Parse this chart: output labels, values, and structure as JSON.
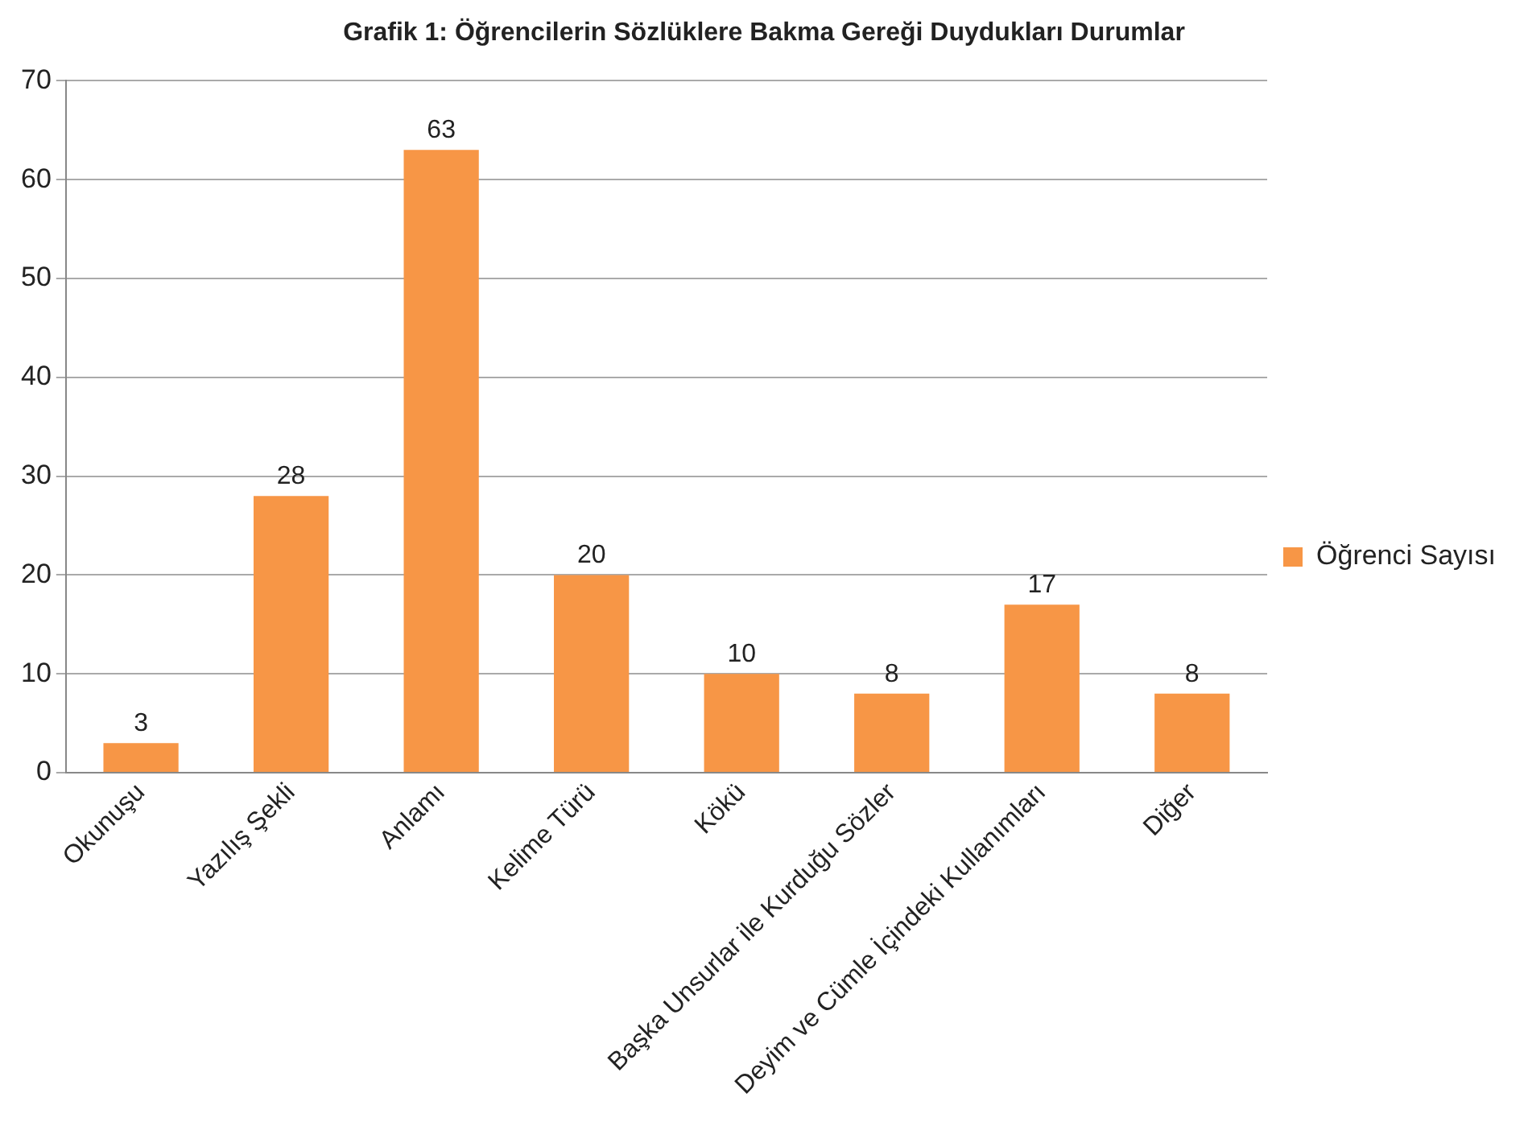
{
  "chart_data": {
    "type": "bar",
    "title": "Grafik 1: Öğrencilerin Sözlüklere Bakma Gereği Duydukları Durumlar",
    "categories": [
      "Okunuşu",
      "Yazılış Şekli",
      "Anlamı",
      "Kelime Türü",
      "Kökü",
      "Başka Unsurlar ile Kurduğu Sözler",
      "Deyim ve Cümle İçindeki Kullanımları",
      "Diğer"
    ],
    "series": [
      {
        "name": "Öğrenci Sayısı",
        "color": "#f79646",
        "values": [
          3,
          28,
          63,
          20,
          10,
          8,
          17,
          8
        ]
      }
    ],
    "ylim": [
      0,
      70
    ],
    "yticks": [
      0,
      10,
      20,
      30,
      40,
      50,
      60,
      70
    ],
    "grid": "y",
    "legend": "right",
    "data_labels": true
  }
}
